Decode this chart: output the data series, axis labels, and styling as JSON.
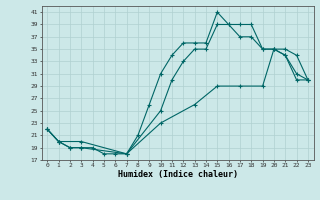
{
  "xlabel": "Humidex (Indice chaleur)",
  "background_color": "#cce8e8",
  "grid_color": "#b0d0d0",
  "line_color": "#006666",
  "xlim": [
    -0.5,
    23.5
  ],
  "ylim": [
    17,
    42
  ],
  "yticks": [
    17,
    19,
    21,
    23,
    25,
    27,
    29,
    31,
    33,
    35,
    37,
    39,
    41
  ],
  "xticks": [
    0,
    1,
    2,
    3,
    4,
    5,
    6,
    7,
    8,
    9,
    10,
    11,
    12,
    13,
    14,
    15,
    16,
    17,
    18,
    19,
    20,
    21,
    22,
    23
  ],
  "series1_x": [
    0,
    1,
    2,
    3,
    4,
    5,
    6,
    7,
    8,
    9,
    10,
    11,
    12,
    13,
    14,
    15,
    16,
    17,
    18,
    19,
    20,
    21,
    22,
    23
  ],
  "series1_y": [
    22,
    20,
    19,
    19,
    19,
    18,
    18,
    18,
    21,
    26,
    31,
    34,
    36,
    36,
    36,
    41,
    39,
    39,
    39,
    35,
    35,
    34,
    30,
    30
  ],
  "series2_x": [
    0,
    1,
    2,
    3,
    7,
    10,
    11,
    12,
    13,
    14,
    15,
    16,
    17,
    18,
    19,
    20,
    21,
    22,
    23
  ],
  "series2_y": [
    22,
    20,
    19,
    19,
    18,
    25,
    30,
    33,
    35,
    35,
    39,
    39,
    37,
    37,
    35,
    35,
    34,
    31,
    30
  ],
  "series3_x": [
    0,
    1,
    3,
    7,
    10,
    13,
    15,
    17,
    19,
    20,
    21,
    22,
    23
  ],
  "series3_y": [
    22,
    20,
    20,
    18,
    23,
    26,
    29,
    29,
    29,
    35,
    35,
    34,
    30
  ]
}
